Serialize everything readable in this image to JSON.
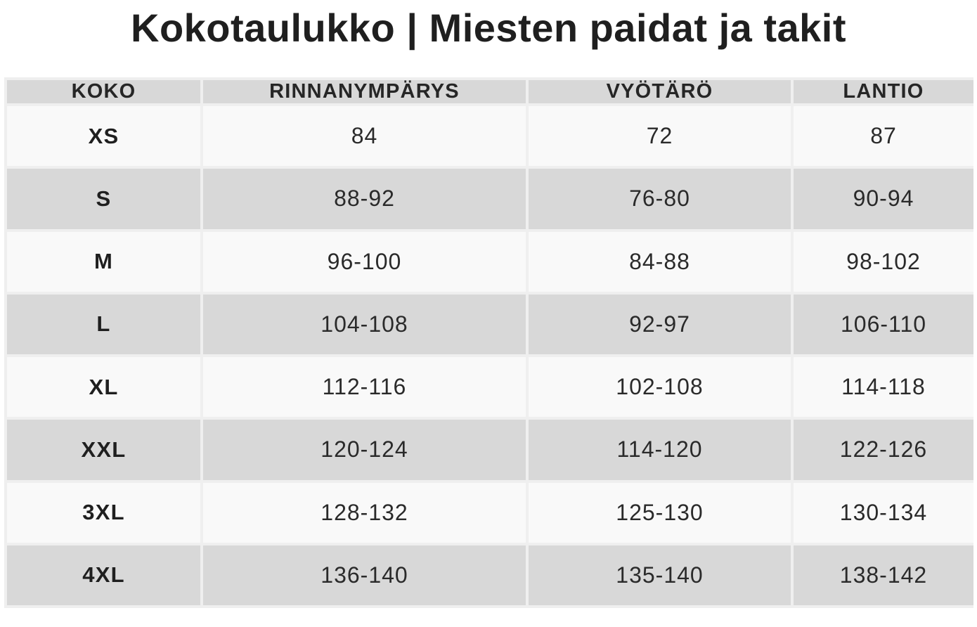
{
  "title": "Kokotaulukko | Miesten paidat ja takit",
  "table": {
    "headers": [
      "KOKO",
      "RINNANYMPÄRYS",
      "VYÖTÄRÖ",
      "LANTIO"
    ],
    "rows": [
      {
        "size": "XS",
        "chest": "84",
        "waist": "72",
        "hip": "87"
      },
      {
        "size": "S",
        "chest": "88-92",
        "waist": "76-80",
        "hip": "90-94"
      },
      {
        "size": "M",
        "chest": "96-100",
        "waist": "84-88",
        "hip": "98-102"
      },
      {
        "size": "L",
        "chest": "104-108",
        "waist": "92-97",
        "hip": "106-110"
      },
      {
        "size": "XL",
        "chest": "112-116",
        "waist": "102-108",
        "hip": "114-118"
      },
      {
        "size": "XXL",
        "chest": "120-124",
        "waist": "114-120",
        "hip": "122-126"
      },
      {
        "size": "3XL",
        "chest": "128-132",
        "waist": "125-130",
        "hip": "130-134"
      },
      {
        "size": "4XL",
        "chest": "136-140",
        "waist": "135-140",
        "hip": "138-142"
      }
    ]
  },
  "colors": {
    "header_bg": "#d8d8d8",
    "row_light_bg": "#f9f9f9",
    "row_dark_bg": "#d8d8d8",
    "grid_line": "#efefef",
    "text": "#222222"
  }
}
